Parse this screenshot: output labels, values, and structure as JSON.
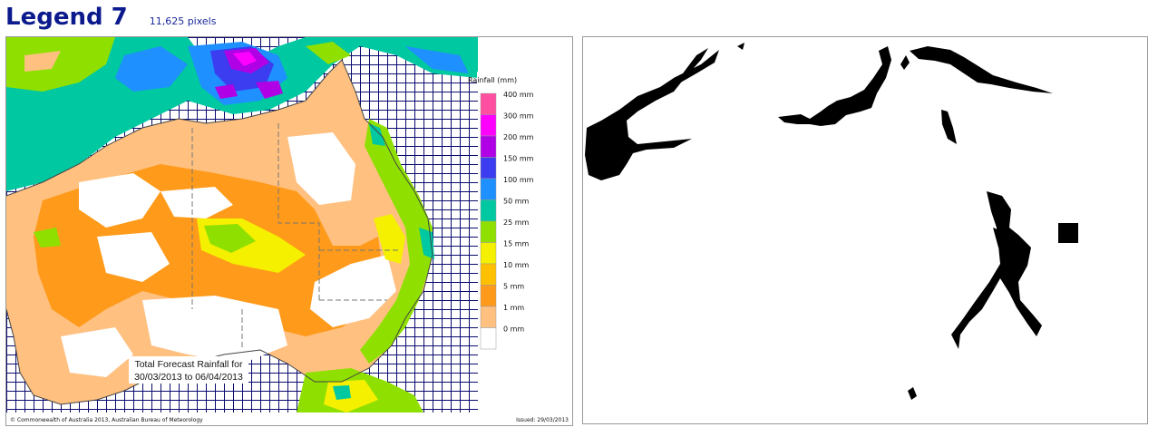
{
  "header": {
    "title": "Legend 7",
    "pixel_count": "11,625 pixels"
  },
  "map": {
    "legend_title": "Rainfall (mm)",
    "legend": [
      {
        "label": "400 mm",
        "color": "#ff4fa0"
      },
      {
        "label": "300 mm",
        "color": "#ff00ff"
      },
      {
        "label": "200 mm",
        "color": "#b000e6"
      },
      {
        "label": "150 mm",
        "color": "#3c3cf0"
      },
      {
        "label": "100 mm",
        "color": "#1e90ff"
      },
      {
        "label": "50 mm",
        "color": "#00c8a0"
      },
      {
        "label": "25 mm",
        "color": "#8fe000"
      },
      {
        "label": "15 mm",
        "color": "#f5f000"
      },
      {
        "label": "10 mm",
        "color": "#ffc000"
      },
      {
        "label": "5 mm",
        "color": "#ff9a1a"
      },
      {
        "label": "1 mm",
        "color": "#ffc080"
      },
      {
        "label": "0 mm",
        "color": "#ffffff"
      }
    ],
    "caption_line1": "Total Forecast Rainfall for",
    "caption_line2": "30/03/2013 to 06/04/2013",
    "copyright": "© Commonwealth of Australia 2013, Australian Bureau of Meteorology",
    "issued": "Issued: 29/03/2013"
  }
}
